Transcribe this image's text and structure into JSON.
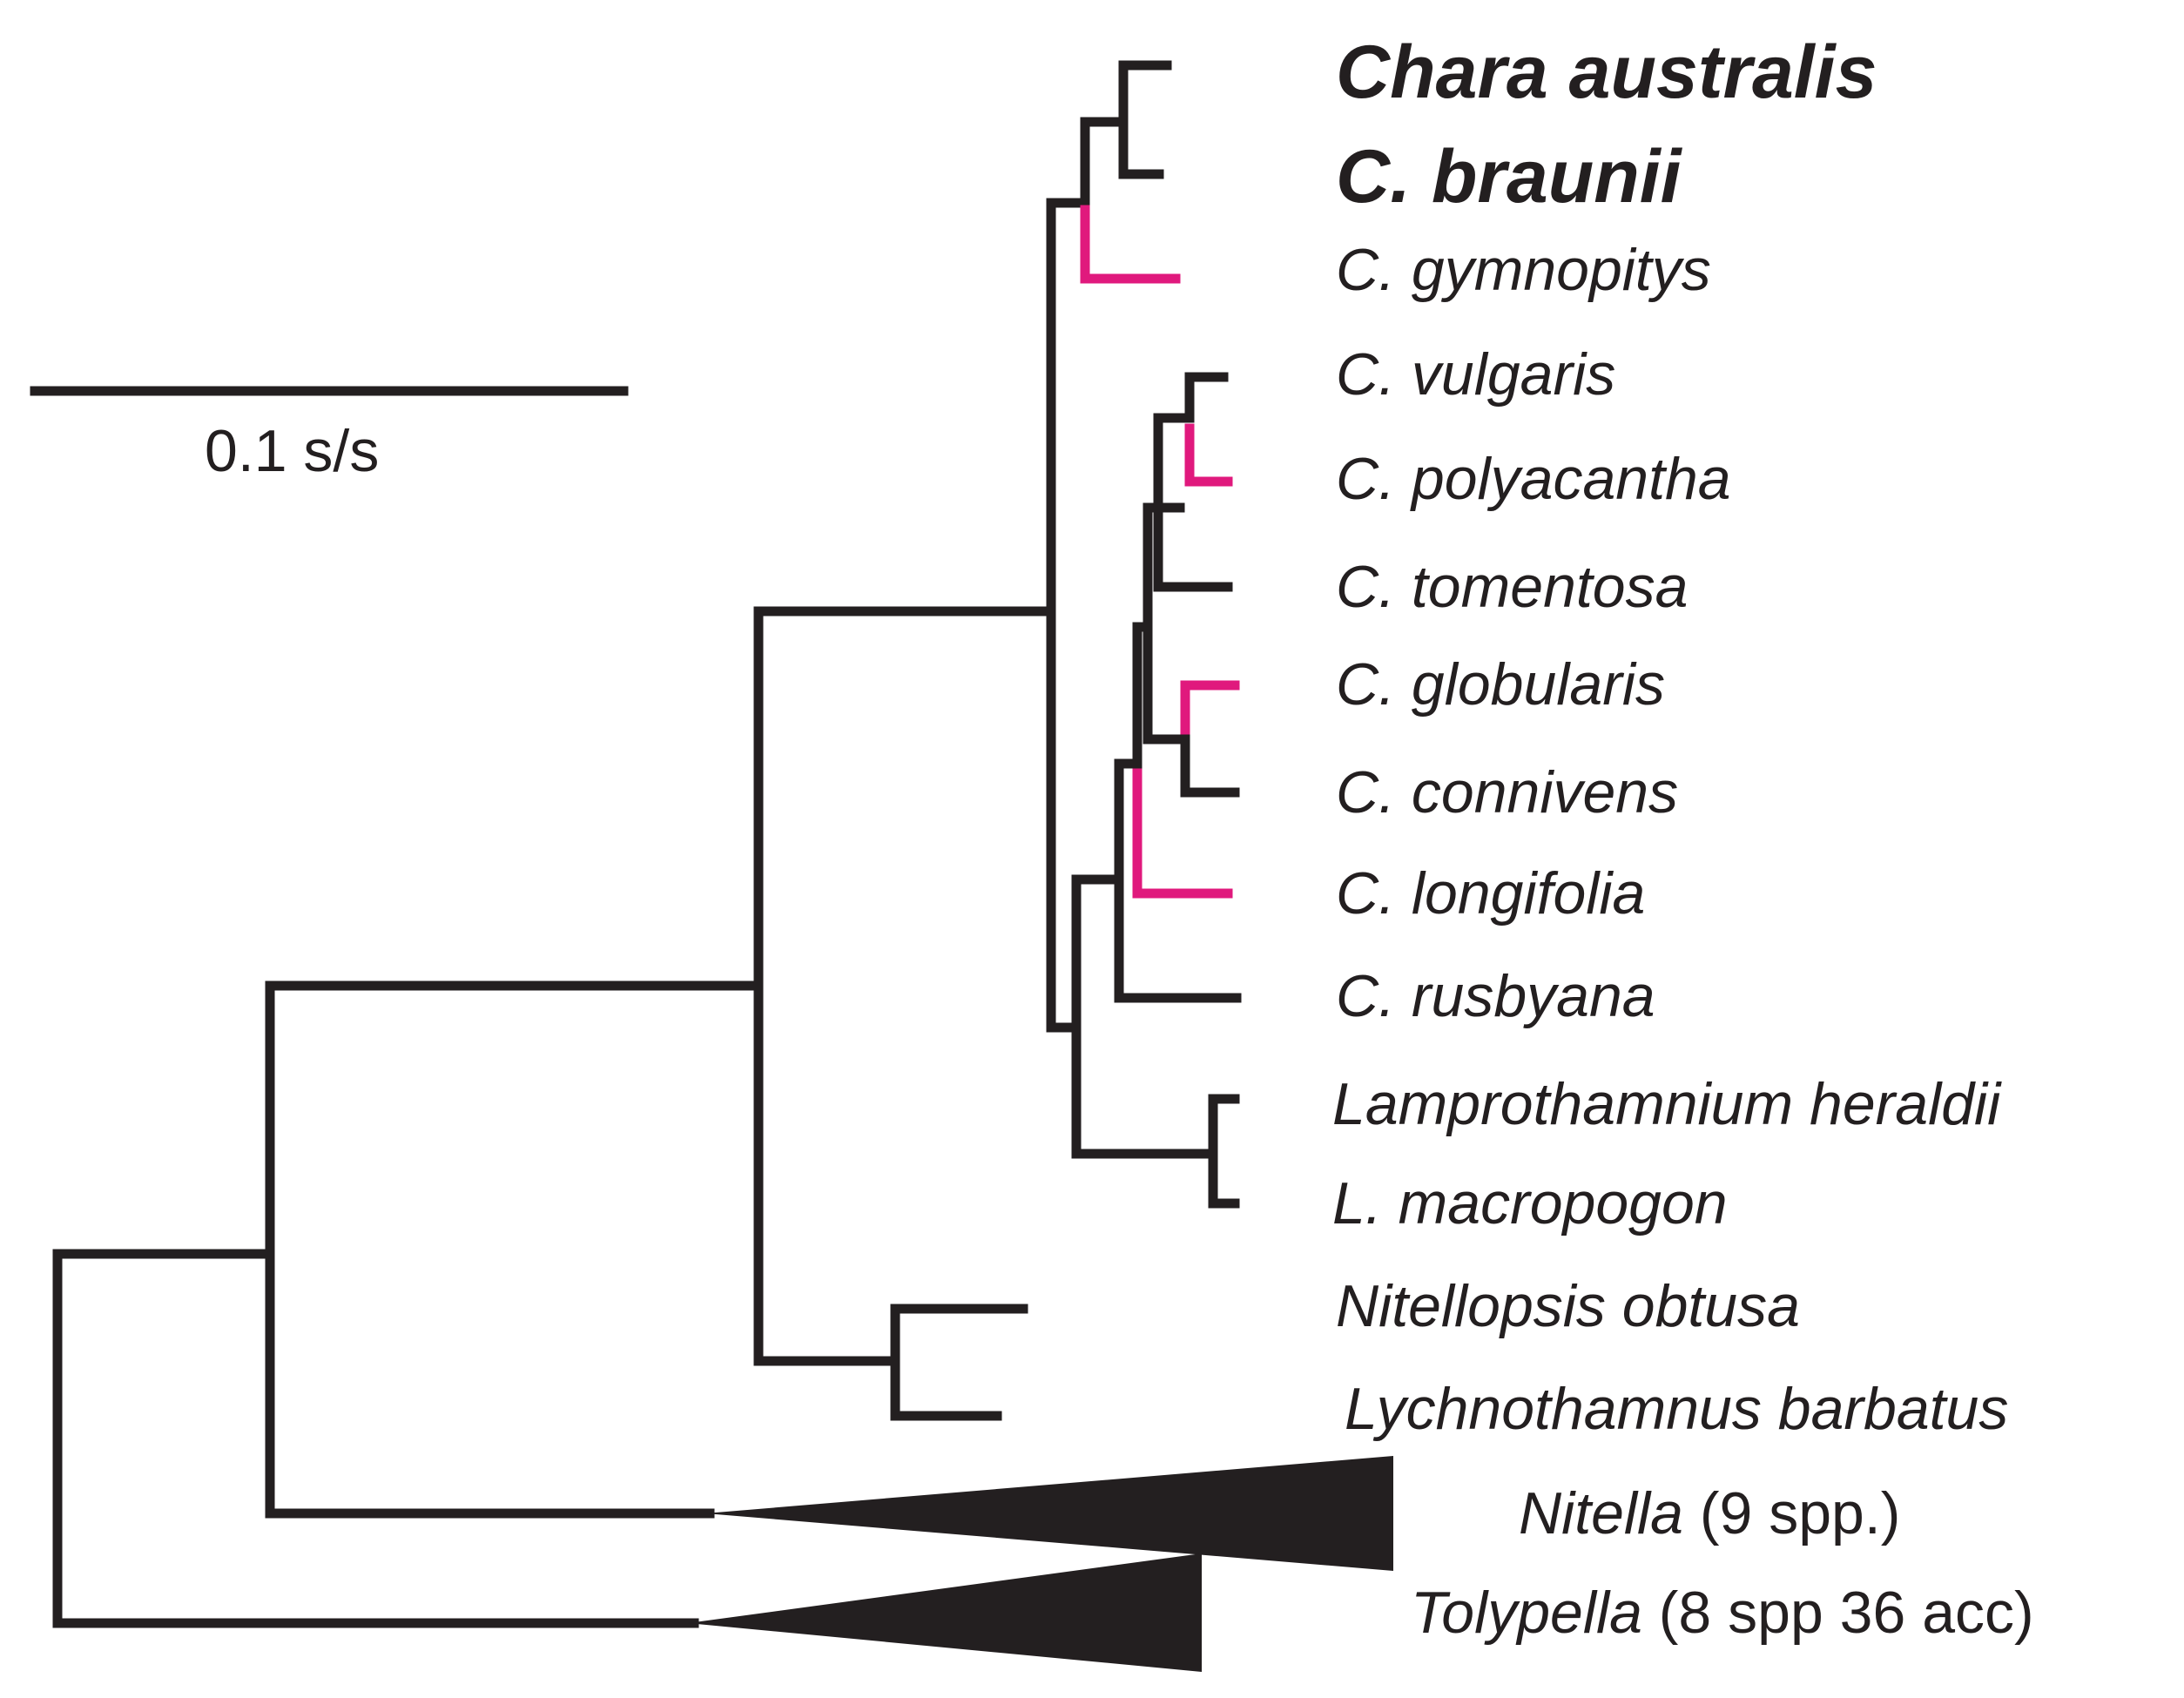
{
  "scale_bar": {
    "label": "0.1 s/s"
  },
  "taxa": [
    {
      "id": "chara_australis",
      "name": "Chara australis",
      "bold": true
    },
    {
      "id": "c_braunii",
      "name": "C. braunii",
      "bold": true
    },
    {
      "id": "c_gymnopitys",
      "name": "C. gymnopitys"
    },
    {
      "id": "c_vulgaris",
      "name": "C. vulgaris"
    },
    {
      "id": "c_polyacantha",
      "name": "C. polyacantha"
    },
    {
      "id": "c_tomentosa",
      "name": "C. tomentosa"
    },
    {
      "id": "c_globularis",
      "name": "C. globularis"
    },
    {
      "id": "c_connivens",
      "name": "C. connivens"
    },
    {
      "id": "c_longifolia",
      "name": "C. longifolia"
    },
    {
      "id": "c_rusbyana",
      "name": "C. rusbyana"
    },
    {
      "id": "lamprothamnium_heraldii",
      "name": "Lamprothamnium heraldii"
    },
    {
      "id": "l_macropogon",
      "name": "L. macropogon"
    },
    {
      "id": "nitellopsis_obtusa",
      "name": "Nitellopsis obtusa"
    },
    {
      "id": "lychnothamnus_barbatus",
      "name": "Lychnothamnus barbatus"
    }
  ],
  "collapsed_clades": [
    {
      "id": "nitella",
      "genus": "Nitella",
      "detail": " (9 spp.)"
    },
    {
      "id": "tolypella",
      "genus": "Tolypella",
      "detail": " (8 spp 36 acc)"
    }
  ],
  "colors": {
    "branch": "#231f20",
    "highlight": "#e0197d",
    "text": "#231f20"
  }
}
